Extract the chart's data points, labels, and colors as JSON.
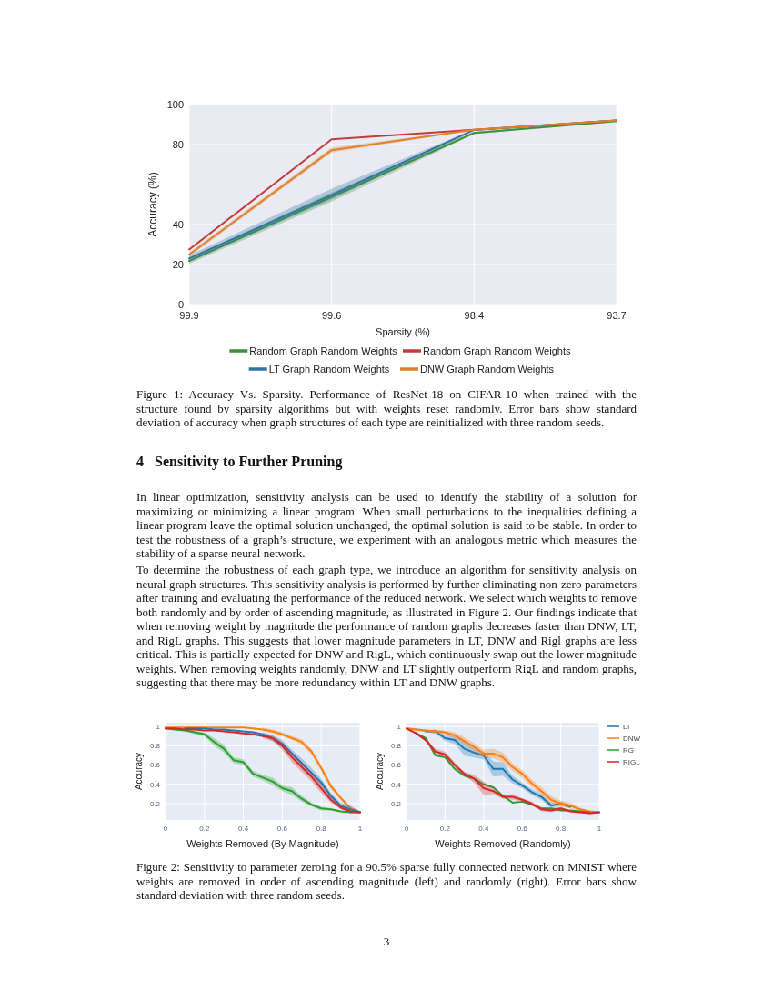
{
  "chart_data": [
    {
      "type": "line",
      "xlabel": "Sparsity (%)",
      "ylabel": "Accuracy (%)",
      "categories": [
        "99.9",
        "99.6",
        "98.4",
        "93.7"
      ],
      "ylim": [
        0,
        100
      ],
      "yticks": [
        0,
        20,
        40,
        80,
        100
      ],
      "grid": true,
      "legend": "bottom",
      "series": [
        {
          "name": "Random Graph Random Weights",
          "color": "#3a923a",
          "values": [
            21.8,
            53.8,
            85.8,
            91.7
          ],
          "lower": [
            20.5,
            51.5,
            85.2,
            91.4
          ],
          "upper": [
            23,
            56,
            86.4,
            92
          ]
        },
        {
          "name": "Random Graph Random Weights",
          "color": "#c03d3e",
          "values": [
            27.5,
            82.6,
            87.4,
            92.1
          ]
        },
        {
          "name": "LT Graph Random Weights",
          "color": "#3274a1",
          "values": [
            23,
            54.8,
            87.3,
            92
          ],
          "lower": [
            21.5,
            52.5,
            87,
            91.8
          ],
          "upper": [
            24.5,
            58,
            87.6,
            92.2
          ]
        },
        {
          "name": "DNW Graph Random Weights",
          "color": "#e1812c",
          "values": [
            25,
            77.2,
            87.4,
            92.1
          ],
          "lower": [
            24,
            76,
            87.2,
            91.9
          ],
          "upper": [
            26,
            78.5,
            87.6,
            92.3
          ]
        }
      ],
      "annotations": [
        "Figure 1: Accuracy Vs. Sparsity. Performance of ResNet-18 on CIFAR-10 when trained with the structure found by sparsity algorithms but with weights reset randomly. Error bars show standard deviation of accuracy when graph structures of each type are reinitialized with three random seeds.",
        "4   Sensitivity to Further Pruning",
        "In linear optimization, sensitivity analysis can be used to identify the stability of a solution for maximizing or minimizing a linear program. When small perturbations to the inequalities defining a linear program leave the optimal solution unchanged, the optimal solution is said to be stable. In order to test the robustness of a graph’s structure, we experiment with an analogous metric which measures the stability of a sparse neural network.",
        "To determine the robustness of each graph type, we introduce an algorithm for sensitivity analysis on neural graph structures. This sensitivity analysis is performed by further eliminating non-zero parameters after training and evaluating the performance of the reduced network. We select which weights to remove both randomly and by order of ascending magnitude, as illustrated in Figure 2. Our findings indicate that when removing weight by magnitude the performance of random graphs decreases faster than DNW, LT, and RigL graphs. This suggests that lower magnitude parameters in LT, DNW and Rigl graphs are less critical. This is partially expected for DNW and RigL, which continuously swap out the lower magnitude weights. When removing weights randomly, DNW and LT slightly outperform RigL and random graphs, suggesting that there may be more redundancy within LT and DNW graphs."
      ]
    },
    {
      "type": "line",
      "xlabel": "Weights Removed (By Magnitude)",
      "ylabel": "Accuracy",
      "x": [
        0,
        0.05,
        0.1,
        0.15,
        0.2,
        0.25,
        0.3,
        0.35,
        0.4,
        0.45,
        0.5,
        0.55,
        0.6,
        0.65,
        0.7,
        0.75,
        0.8,
        0.85,
        0.9,
        0.95,
        1
      ],
      "xlim": [
        0,
        1
      ],
      "xticks": [
        0,
        0.2,
        0.4,
        0.6,
        0.8,
        1
      ],
      "ylim": [
        0.03,
        1.04
      ],
      "yticks": [
        0.2,
        0.4,
        0.6,
        0.8,
        1
      ],
      "grid": true,
      "series": [
        {
          "color": "#2ca02c",
          "values": [
            0.98,
            0.97,
            0.96,
            0.94,
            0.92,
            0.84,
            0.77,
            0.65,
            0.63,
            0.51,
            0.47,
            0.43,
            0.36,
            0.33,
            0.25,
            0.19,
            0.15,
            0.14,
            0.12,
            0.11,
            0.11
          ],
          "lower": [
            0.97,
            0.96,
            0.95,
            0.92,
            0.9,
            0.8,
            0.73,
            0.62,
            0.6,
            0.48,
            0.44,
            0.39,
            0.33,
            0.29,
            0.22,
            0.17,
            0.13,
            0.13,
            0.11,
            0.1,
            0.1
          ],
          "upper": [
            0.99,
            0.98,
            0.97,
            0.96,
            0.94,
            0.88,
            0.81,
            0.68,
            0.66,
            0.54,
            0.5,
            0.47,
            0.39,
            0.37,
            0.28,
            0.21,
            0.17,
            0.15,
            0.13,
            0.12,
            0.12
          ]
        },
        {
          "color": "#ff7f0e",
          "values": [
            0.99,
            0.99,
            0.99,
            0.99,
            0.99,
            0.99,
            0.99,
            0.99,
            0.99,
            0.98,
            0.97,
            0.95,
            0.92,
            0.88,
            0.84,
            0.74,
            0.57,
            0.38,
            0.26,
            0.15,
            0.11
          ],
          "lower": [
            null,
            null,
            null,
            null,
            null,
            null,
            null,
            null,
            null,
            null,
            0.95,
            0.93,
            0.9,
            0.86,
            0.81,
            0.71,
            0.54,
            0.35,
            0.24,
            0.13,
            0.1
          ],
          "upper": [
            null,
            null,
            null,
            null,
            null,
            null,
            null,
            null,
            null,
            null,
            0.99,
            0.97,
            0.94,
            0.9,
            0.87,
            0.77,
            0.6,
            0.41,
            0.28,
            0.17,
            0.12
          ]
        },
        {
          "color": "#1f77b4",
          "values": [
            null,
            null,
            0.98,
            0.98,
            0.98,
            0.97,
            0.97,
            0.96,
            0.95,
            0.94,
            0.92,
            0.88,
            0.82,
            0.72,
            0.62,
            0.52,
            0.42,
            0.28,
            0.18,
            0.14,
            0.11
          ],
          "lower": [
            null,
            null,
            null,
            null,
            null,
            null,
            null,
            null,
            null,
            null,
            0.9,
            0.85,
            0.78,
            0.68,
            0.57,
            0.47,
            0.38,
            0.25,
            0.15,
            0.1,
            0.1
          ],
          "upper": [
            null,
            null,
            null,
            null,
            null,
            null,
            null,
            null,
            null,
            null,
            0.94,
            0.91,
            0.86,
            0.76,
            0.67,
            0.57,
            0.46,
            0.31,
            0.21,
            0.18,
            0.12
          ]
        },
        {
          "color": "#d62728",
          "values": [
            0.98,
            0.98,
            0.97,
            0.97,
            0.96,
            0.96,
            0.95,
            0.94,
            0.93,
            0.92,
            0.9,
            0.88,
            0.8,
            0.68,
            0.58,
            0.48,
            0.36,
            0.24,
            0.16,
            0.12,
            0.11
          ],
          "lower": [
            null,
            null,
            null,
            null,
            null,
            null,
            null,
            null,
            null,
            null,
            0.88,
            0.85,
            0.76,
            0.63,
            0.53,
            0.43,
            0.31,
            0.21,
            0.14,
            0.11,
            0.1
          ],
          "upper": [
            null,
            null,
            null,
            null,
            null,
            null,
            null,
            null,
            null,
            null,
            0.92,
            0.91,
            0.84,
            0.73,
            0.63,
            0.53,
            0.41,
            0.27,
            0.18,
            0.13,
            0.12
          ]
        }
      ]
    },
    {
      "type": "line",
      "xlabel": "Weights Removed (Randomly)",
      "ylabel": "Accuracy",
      "x": [
        0,
        0.05,
        0.1,
        0.15,
        0.2,
        0.25,
        0.3,
        0.35,
        0.4,
        0.45,
        0.5,
        0.55,
        0.6,
        0.65,
        0.7,
        0.75,
        0.8,
        0.85,
        0.9,
        0.95,
        1
      ],
      "xlim": [
        0,
        1
      ],
      "xticks": [
        0,
        0.2,
        0.4,
        0.6,
        0.8,
        1
      ],
      "ylim": [
        0.03,
        1.04
      ],
      "yticks": [
        0.2,
        0.4,
        0.6,
        0.8,
        1
      ],
      "grid": true,
      "legend": "right",
      "series": [
        {
          "name": "LT",
          "color": "#1f77b4",
          "values": [
            null,
            null,
            0.95,
            0.95,
            0.88,
            0.86,
            0.77,
            0.73,
            0.7,
            0.56,
            0.56,
            0.45,
            0.39,
            0.32,
            0.27,
            0.18,
            0.2,
            0.17,
            null,
            null,
            null
          ],
          "lower": [
            0.97,
            0.96,
            0.94,
            0.93,
            0.85,
            0.82,
            0.7,
            0.68,
            0.66,
            0.48,
            0.49,
            0.41,
            0.36,
            0.29,
            0.24,
            0.15,
            0.18,
            0.15,
            null,
            null,
            null
          ],
          "upper": [
            0.99,
            0.98,
            0.96,
            0.97,
            0.91,
            0.9,
            0.84,
            0.78,
            0.74,
            0.64,
            0.63,
            0.49,
            0.42,
            0.35,
            0.3,
            0.21,
            0.22,
            0.19,
            null,
            null,
            null
          ]
        },
        {
          "name": "DNW",
          "color": "#ff7f0e",
          "values": [
            0.98,
            0.97,
            0.96,
            0.95,
            0.94,
            0.91,
            0.85,
            0.79,
            0.72,
            0.72,
            0.68,
            0.58,
            0.51,
            0.41,
            0.33,
            0.24,
            0.2,
            0.18,
            0.14,
            0.12,
            0.11
          ],
          "lower": [
            0.97,
            0.96,
            0.95,
            0.93,
            0.92,
            0.88,
            0.81,
            0.75,
            0.68,
            0.67,
            0.63,
            0.54,
            0.47,
            0.37,
            0.29,
            0.2,
            0.17,
            0.15,
            0.12,
            0.11,
            0.1
          ],
          "upper": [
            0.99,
            0.98,
            0.97,
            0.97,
            0.96,
            0.94,
            0.89,
            0.83,
            0.76,
            0.77,
            0.73,
            0.62,
            0.55,
            0.45,
            0.37,
            0.28,
            0.23,
            0.21,
            0.16,
            0.13,
            0.12
          ]
        },
        {
          "name": "RG",
          "color": "#2ca02c",
          "values": [
            null,
            0.93,
            0.88,
            0.7,
            0.68,
            0.56,
            0.49,
            0.46,
            0.4,
            0.37,
            0.28,
            0.21,
            0.22,
            0.19,
            0.15,
            0.15,
            0.13,
            0.13,
            0.12,
            0.11,
            null
          ]
        },
        {
          "name": "RIGL",
          "color": "#d62728",
          "values": [
            0.98,
            0.93,
            0.86,
            0.74,
            0.71,
            0.6,
            0.51,
            0.46,
            0.36,
            0.33,
            0.27,
            0.27,
            0.24,
            0.2,
            0.14,
            0.13,
            0.15,
            0.12,
            0.11,
            0.1,
            0.11
          ],
          "lower": [
            0.97,
            0.92,
            0.84,
            0.71,
            0.68,
            0.57,
            0.49,
            0.42,
            0.29,
            0.3,
            0.25,
            0.24,
            0.22,
            0.18,
            0.12,
            0.11,
            0.13,
            0.11,
            0.1,
            0.09,
            0.1
          ],
          "upper": [
            0.99,
            0.94,
            0.88,
            0.77,
            0.74,
            0.63,
            0.53,
            0.5,
            0.43,
            0.36,
            0.29,
            0.3,
            0.26,
            0.22,
            0.16,
            0.15,
            0.17,
            0.13,
            0.12,
            0.11,
            0.12
          ]
        }
      ],
      "annotations": [
        "Figure 2: Sensitivity to parameter zeroing for a 90.5% sparse fully connected network on MNIST where weights are removed in order of ascending magnitude (left) and randomly (right). Error bars show standard deviation with three random seeds.",
        "3"
      ]
    }
  ]
}
